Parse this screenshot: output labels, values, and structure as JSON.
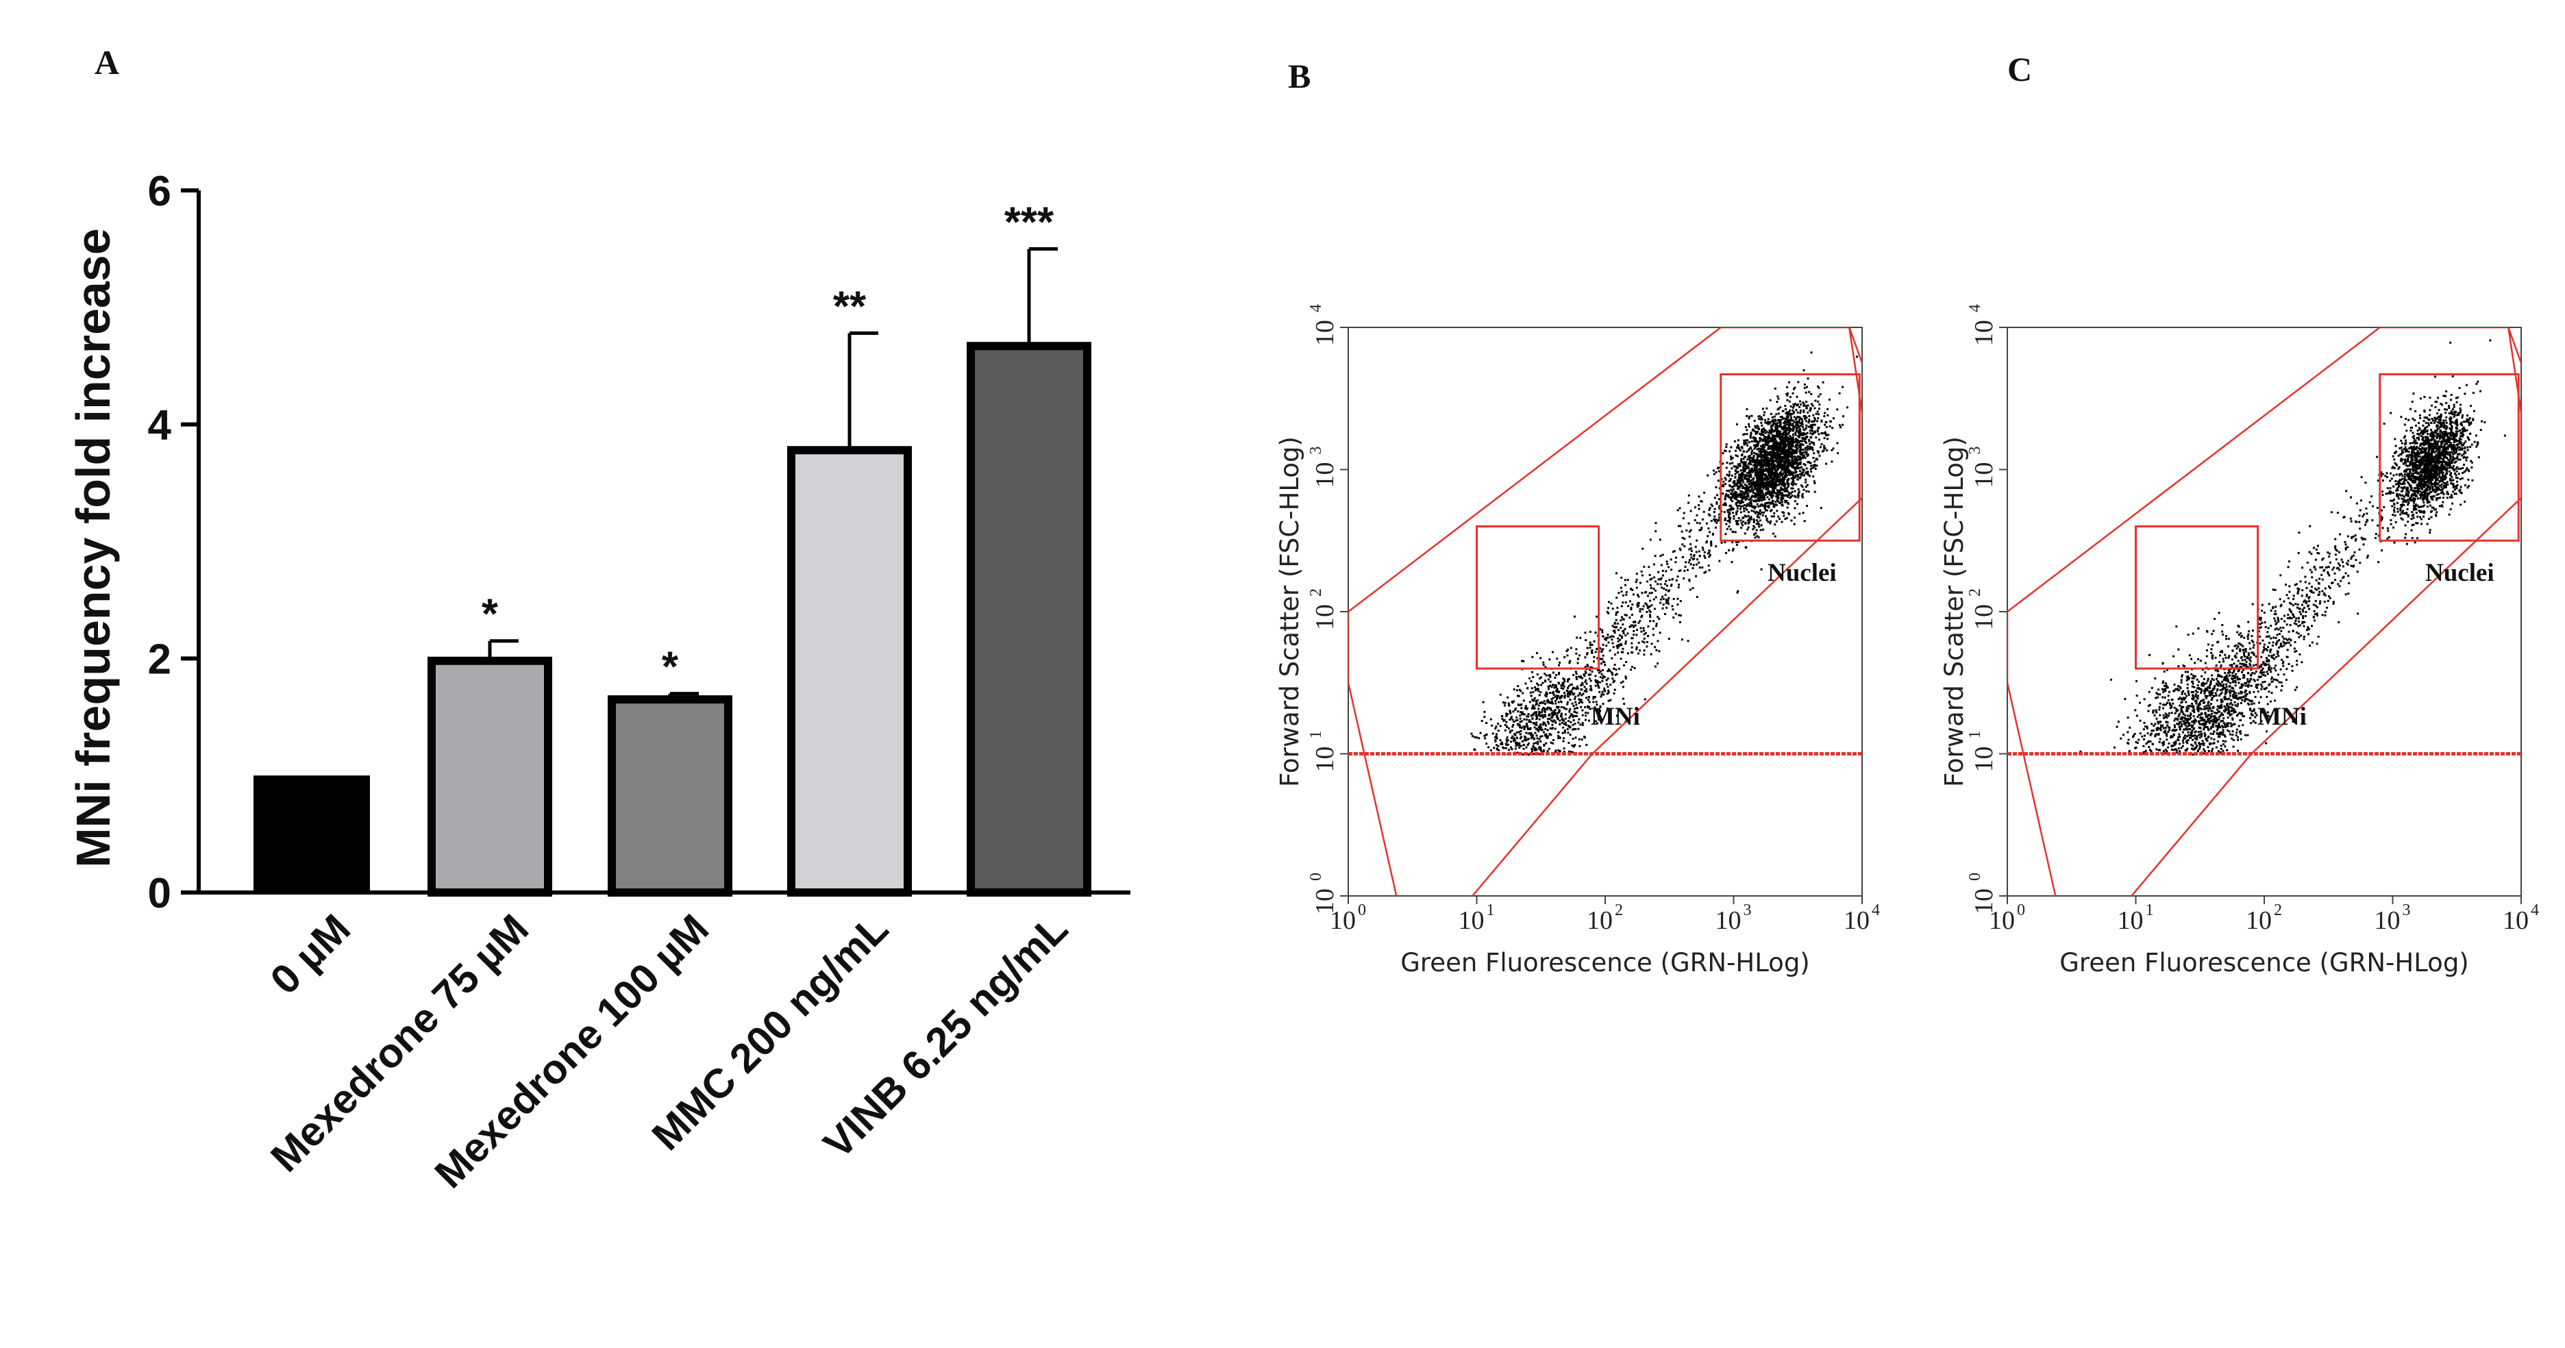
{
  "chart_data": [
    {
      "type": "bar",
      "panel_label": "A",
      "ylabel": "MNi frequency fold increase",
      "xlabel": "",
      "ylim": [
        0,
        6
      ],
      "yticks": [
        "0",
        "2",
        "4",
        "6"
      ],
      "categories": [
        "0 µM",
        "Mexedrone 75 µM",
        "Mexedrone 100 µM",
        "MMC 200 ng/mL",
        "VINB 6.25 ng/mL"
      ],
      "values": [
        1.0,
        1.98,
        1.65,
        3.78,
        4.67
      ],
      "errors": [
        0.0,
        0.17,
        0.05,
        1.0,
        0.83
      ],
      "significance": [
        "",
        "*",
        "*",
        "**",
        "***"
      ],
      "bar_colors": [
        "#000000",
        "#a9a9ae",
        "#818181",
        "#d1d2d6",
        "#5a5a5a"
      ]
    },
    {
      "type": "scatter",
      "panel_label": "B",
      "xlabel": "Green Fluorescence (GRN-HLog)",
      "ylabel": "Forward Scatter (FSC-HLog)",
      "xscale": "log",
      "yscale": "log",
      "xlim": [
        1,
        10000
      ],
      "ylim": [
        1,
        10000
      ],
      "gates": [
        "MNi",
        "Nuclei"
      ],
      "threshold_y": 10,
      "populations": [
        {
          "name": "Nuclei",
          "center_log": [
            3.3,
            3.05
          ],
          "spread_log": [
            0.18,
            0.18
          ],
          "count": 2600
        },
        {
          "name": "tail",
          "center_log": [
            2.2,
            1.9
          ],
          "spread_log": [
            0.5,
            0.55
          ],
          "count": 700
        },
        {
          "name": "MNi",
          "center_log": [
            1.5,
            1.25
          ],
          "spread_log": [
            0.25,
            0.18
          ],
          "count": 800
        }
      ],
      "point_color": "#000000",
      "gate_color": "#e8312c"
    },
    {
      "type": "scatter",
      "panel_label": "C",
      "xlabel": "Green Fluorescence (GRN-HLog)",
      "ylabel": "Forward Scatter (FSC-HLog)",
      "xscale": "log",
      "yscale": "log",
      "xlim": [
        1,
        10000
      ],
      "ylim": [
        1,
        10000
      ],
      "gates": [
        "MNi",
        "Nuclei"
      ],
      "threshold_y": 10,
      "populations": [
        {
          "name": "Nuclei",
          "center_log": [
            3.3,
            3.07
          ],
          "spread_log": [
            0.15,
            0.17
          ],
          "count": 1800
        },
        {
          "name": "tail",
          "center_log": [
            2.1,
            1.85
          ],
          "spread_log": [
            0.5,
            0.55
          ],
          "count": 700
        },
        {
          "name": "MNi",
          "center_log": [
            1.5,
            1.3
          ],
          "spread_log": [
            0.3,
            0.22
          ],
          "count": 1300
        }
      ],
      "point_color": "#000000",
      "gate_color": "#e8312c"
    }
  ]
}
